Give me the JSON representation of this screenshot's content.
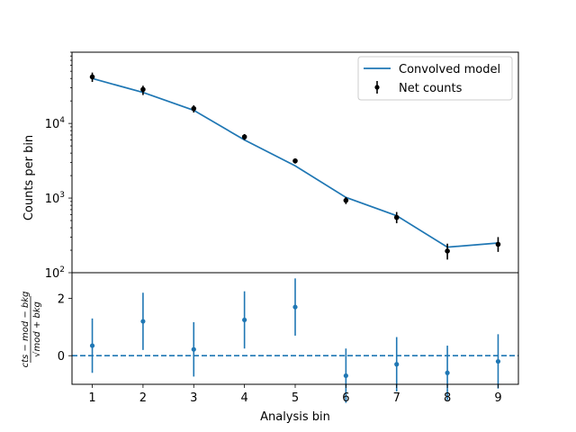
{
  "chart_data": [
    {
      "type": "line",
      "panel": "main",
      "yscale": "log",
      "ylabel": "Counts per bin",
      "xlim": [
        0.6,
        9.4
      ],
      "ylim": [
        100,
        90000
      ],
      "ytick_labels": [
        {
          "value": 100,
          "base": "10",
          "exp": "2"
        },
        {
          "value": 1000,
          "base": "10",
          "exp": "3"
        },
        {
          "value": 10000,
          "base": "10",
          "exp": "4"
        }
      ],
      "legend_placement": "top-right",
      "series": [
        {
          "name": "Convolved model",
          "kind": "line",
          "color": "#1f77b4",
          "x": [
            1,
            2,
            3,
            4,
            5,
            6,
            7,
            8,
            9
          ],
          "y": [
            40000,
            26000,
            15000,
            6000,
            2700,
            1020,
            580,
            220,
            250
          ]
        },
        {
          "name": "Net counts",
          "kind": "errorbar",
          "color": "#000000",
          "x": [
            1,
            2,
            3,
            4,
            5,
            6,
            7,
            8,
            9
          ],
          "y": [
            42000,
            28500,
            15800,
            6600,
            3150,
            930,
            550,
            195,
            240
          ],
          "yerr_low": [
            36000,
            24000,
            14000,
            6000,
            2900,
            830,
            460,
            150,
            190
          ],
          "yerr_high": [
            48000,
            32000,
            17500,
            7200,
            3400,
            1030,
            650,
            245,
            300
          ]
        }
      ]
    },
    {
      "type": "scatter",
      "panel": "residuals",
      "xlabel": "Analysis bin",
      "ylabel": "(cts − mod − bkg) / √(mod + bkg)",
      "ylabel_numerator": "cts − mod − bkg",
      "ylabel_denominator": "√mod + bkg",
      "xlim": [
        0.6,
        9.4
      ],
      "ylim": [
        -1.0,
        2.9
      ],
      "xticks": [
        "1",
        "2",
        "3",
        "4",
        "5",
        "6",
        "7",
        "8",
        "9"
      ],
      "yticks": [
        "0",
        "2"
      ],
      "zero_line": "dashed",
      "series": [
        {
          "name": "",
          "kind": "errorbar",
          "color": "#1f77b4",
          "x": [
            1,
            2,
            3,
            4,
            5,
            6,
            7,
            8,
            9
          ],
          "y": [
            0.35,
            1.2,
            0.22,
            1.25,
            1.7,
            -0.7,
            -0.3,
            -0.6,
            -0.2
          ],
          "yerr": [
            0.95,
            1.0,
            0.95,
            1.0,
            1.0,
            0.95,
            0.95,
            0.95,
            0.95
          ]
        }
      ]
    }
  ]
}
